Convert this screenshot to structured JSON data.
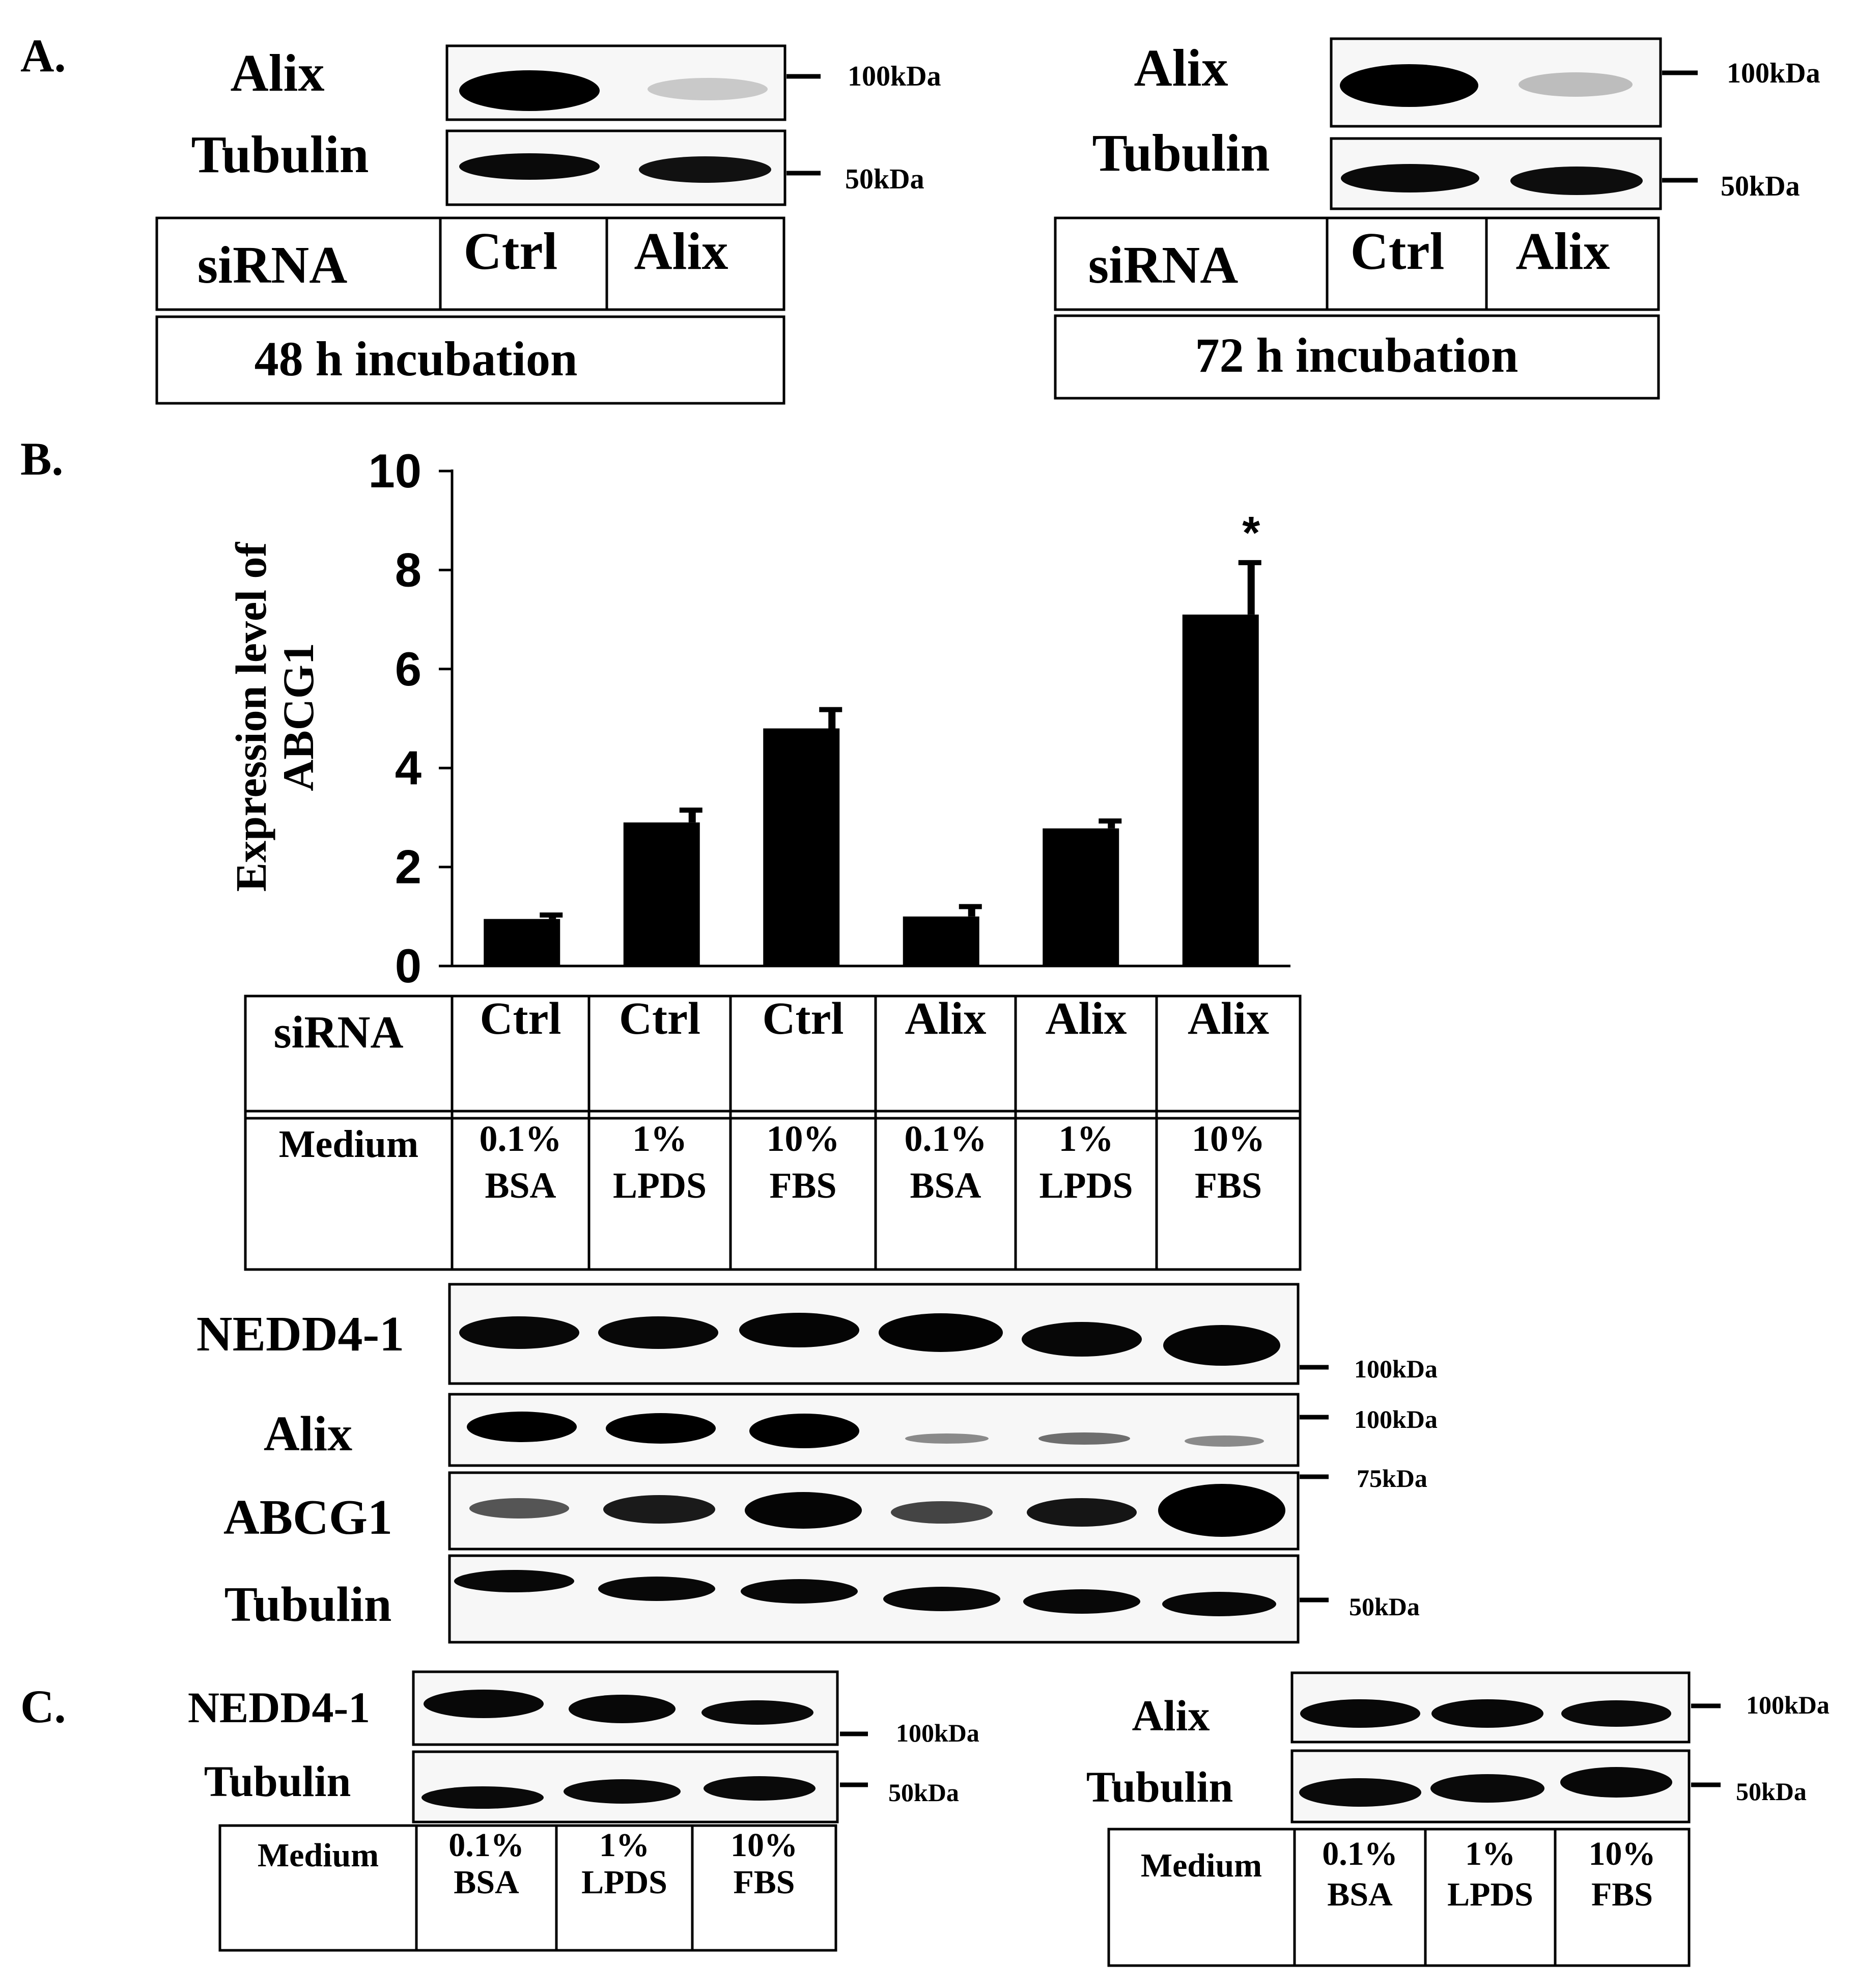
{
  "panels": {
    "a": "A.",
    "b": "B.",
    "c": "C."
  },
  "panel_a": {
    "left": {
      "row_labels": [
        "Alix",
        "Tubulin"
      ],
      "markers": [
        "100kDa",
        "50kDa"
      ],
      "siRNA_label": "siRNA",
      "lanes": [
        "Ctrl",
        "Alix"
      ],
      "incubation": "48 h incubation"
    },
    "right": {
      "row_labels": [
        "Alix",
        "Tubulin"
      ],
      "markers": [
        "100kDa",
        "50kDa"
      ],
      "siRNA_label": "siRNA",
      "lanes": [
        "Ctrl",
        "Alix"
      ],
      "incubation": "72 h incubation"
    }
  },
  "chart_data": {
    "type": "bar",
    "ylabel": "Expression level of ABCG1",
    "ylim": [
      0,
      10
    ],
    "yticks": [
      0,
      2,
      4,
      6,
      8,
      10
    ],
    "categories": [
      "Ctrl 0.1% BSA",
      "Ctrl 1% LPDS",
      "Ctrl 10% FBS",
      "Alix 0.1% BSA",
      "Alix 1% LPDS",
      "Alix 10% FBS"
    ],
    "values": [
      0.95,
      2.9,
      4.8,
      1.0,
      2.78,
      7.1
    ],
    "error": [
      0.08,
      0.25,
      0.38,
      0.2,
      0.15,
      1.05
    ],
    "annotations": [
      "",
      "",
      "",
      "",
      "",
      "*"
    ],
    "bar_color": "#000000"
  },
  "panel_b": {
    "table": {
      "siRNA_label": "siRNA",
      "medium_label": "Medium",
      "siRNA": [
        "Ctrl",
        "Ctrl",
        "Ctrl",
        "Alix",
        "Alix",
        "Alix"
      ],
      "medium_line1": [
        "0.1%",
        "1%",
        "10%",
        "0.1%",
        "1%",
        "10%"
      ],
      "medium_line2": [
        "BSA",
        "LPDS",
        "FBS",
        "BSA",
        "LPDS",
        "FBS"
      ]
    },
    "blot_labels": [
      "NEDD4-1",
      "Alix",
      "ABCG1",
      "Tubulin"
    ],
    "markers": [
      "100kDa",
      "100kDa",
      "75kDa",
      "50kDa"
    ]
  },
  "panel_c": {
    "left": {
      "row_labels": [
        "NEDD4-1",
        "Tubulin"
      ],
      "markers": [
        "100kDa",
        "50kDa"
      ],
      "medium_label": "Medium",
      "medium_line1": [
        "0.1%",
        "1%",
        "10%"
      ],
      "medium_line2": [
        "BSA",
        "LPDS",
        "FBS"
      ]
    },
    "right": {
      "row_labels": [
        "Alix",
        "Tubulin"
      ],
      "markers": [
        "100kDa",
        "50kDa"
      ],
      "medium_label": "Medium",
      "medium_line1": [
        "0.1%",
        "1%",
        "10%"
      ],
      "medium_line2": [
        "BSA",
        "LPDS",
        "FBS"
      ]
    }
  }
}
